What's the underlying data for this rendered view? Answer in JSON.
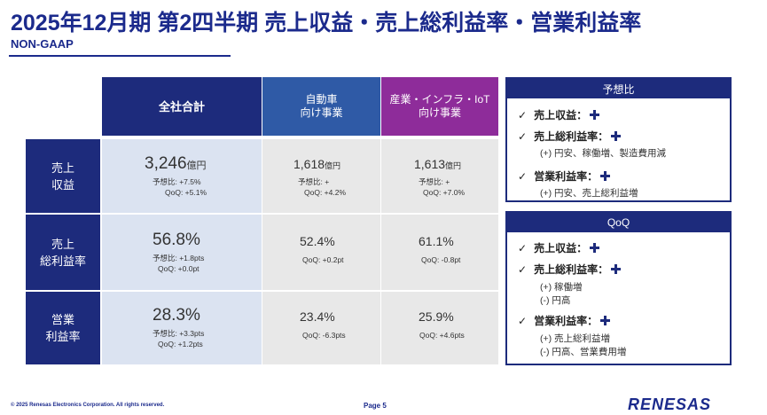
{
  "header": {
    "title": "2025年12月期 第2四半期 売上収益・売上総利益率・営業利益率",
    "subtitle": "NON-GAAP"
  },
  "table": {
    "columns": [
      "全社合計",
      "自動車\n向け事業",
      "産業・インフラ・IoT\n向け事業"
    ],
    "rows": [
      {
        "label": "売上\n収益",
        "total": {
          "value": "3,246",
          "unit": "億円",
          "line1": "予想比: +7.5%",
          "line2": "QoQ: +5.1%"
        },
        "auto": {
          "value": "1,618",
          "unit": "億円",
          "line1": "予想比: +",
          "line2": "QoQ: +4.2%"
        },
        "infra": {
          "value": "1,613",
          "unit": "億円",
          "line1": "予想比: +",
          "line2": "QoQ: +7.0%"
        }
      },
      {
        "label": "売上\n総利益率",
        "total": {
          "value": "56.8%",
          "line1": "予想比: +1.8pts",
          "line2": "QoQ: +0.0pt"
        },
        "auto": {
          "value": "52.4%",
          "line2": "QoQ: +0.2pt"
        },
        "infra": {
          "value": "61.1%",
          "line2": "QoQ: -0.8pt"
        }
      },
      {
        "label": "営業\n利益率",
        "total": {
          "value": "28.3%",
          "line1": "予想比: +3.3pts",
          "line2": "QoQ: +1.2pts"
        },
        "auto": {
          "value": "23.4%",
          "line2": "QoQ: -6.3pts"
        },
        "infra": {
          "value": "25.9%",
          "line2": "QoQ: +4.6pts"
        }
      }
    ]
  },
  "forecast_box": {
    "title": "予想比",
    "check": "✓",
    "items": [
      {
        "label": "売上収益："
      },
      {
        "label": "売上総利益率：",
        "note": "(+) 円安、稼働増、製造費用減"
      },
      {
        "label": "営業利益率：",
        "note": "(+) 円安、売上総利益増"
      }
    ]
  },
  "qoq_box": {
    "title": "QoQ",
    "check": "✓",
    "items": [
      {
        "label": "売上収益："
      },
      {
        "label": "売上総利益率：",
        "note1": "(+) 稼働増",
        "note2": "(-) 円高"
      },
      {
        "label": "営業利益率：",
        "note1": "(+) 売上総利益増",
        "note2": "(-) 円高、営業費用増"
      }
    ]
  },
  "footer": {
    "copyright": "© 2025 Renesas Electronics Corporation. All rights reserved.",
    "page": "Page 5",
    "logo": "RENESAS"
  },
  "colors": {
    "navy": "#1d2b7c",
    "auto_blue": "#2f5aa6",
    "infra_purple": "#8e2c9a",
    "total_bg": "#dbe3f1",
    "segment_bg": "#e8e8e8"
  },
  "icons": [
    "check-icon",
    "plus-icon"
  ]
}
